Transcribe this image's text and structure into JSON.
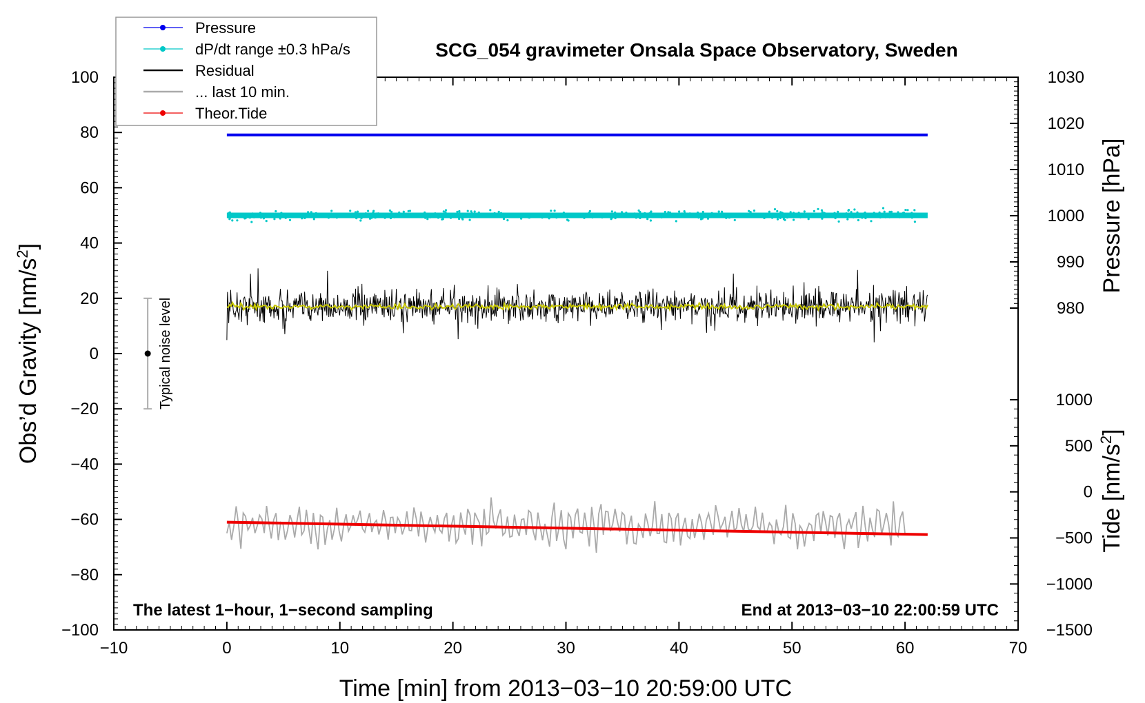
{
  "chart_data": {
    "type": "line",
    "title": "SCG_054 gravimeter Onsala Space Observatory, Sweden",
    "xlabel": "Time [min] from 2013−03−10 20:59:00 UTC",
    "ylabel": "Obs’d Gravity [nm/s²]",
    "ylabel_main": "Obs’d Gravity [nm/s",
    "ylabel_sup": "2",
    "ylabel_close": "]",
    "y2label": "Pressure [hPa]",
    "y3label": "Tide [nm/s²]",
    "y3label_main": "Tide [nm/s",
    "y3label_sup": "2",
    "y3label_close": "]",
    "xlim": [
      -10,
      70
    ],
    "ylim": [
      -100,
      100
    ],
    "pressure_lim": [
      970,
      1030
    ],
    "tide_lim": [
      -1500,
      1000
    ],
    "x_ticks": [
      -10,
      0,
      10,
      20,
      30,
      40,
      50,
      60,
      70
    ],
    "x_tick_labels": [
      "−10",
      "0",
      "10",
      "20",
      "30",
      "40",
      "50",
      "60",
      "70"
    ],
    "y_ticks": [
      100,
      80,
      60,
      40,
      20,
      0,
      -20,
      -40,
      -60,
      -80,
      -100
    ],
    "y_tick_labels": [
      "100",
      "80",
      "60",
      "40",
      "20",
      "0",
      "−20",
      "−40",
      "−60",
      "−80",
      "−100"
    ],
    "pressure_ticks": [
      1030,
      1020,
      1010,
      1000,
      990,
      980
    ],
    "pressure_tick_labels": [
      "1030",
      "1020",
      "1010",
      "1000",
      "990",
      "980"
    ],
    "tide_ticks": [
      1000,
      500,
      0,
      -500,
      -1000,
      -1500
    ],
    "tide_tick_labels": [
      "1000",
      "500",
      "0",
      "−500",
      "−1000",
      "−1500"
    ],
    "legend": [
      {
        "name": "Pressure",
        "color": "#0000ee",
        "marker": "dot"
      },
      {
        "name": "dP/dt range ±0.3 hPa/s",
        "color": "#00c8c8",
        "marker": "dot"
      },
      {
        "name": "Residual",
        "color": "#000000",
        "marker": "line"
      },
      {
        "name": "... last 10 min.",
        "color": "#aaaaaa",
        "marker": "line"
      },
      {
        "name": "Theor.Tide",
        "color": "#ee0000",
        "marker": "dot"
      }
    ],
    "series": [
      {
        "name": "Pressure",
        "axis": "pressure",
        "x_range": [
          0,
          62
        ],
        "level_hpa": 1017.5
      },
      {
        "name": "dP/dt range ±0.3 hPa/s",
        "axis": "gravity",
        "x_range": [
          0,
          62
        ],
        "level_nms2": 50
      },
      {
        "name": "Residual",
        "axis": "gravity",
        "x_range": [
          0,
          62
        ],
        "mean_nms2": 17,
        "amplitude_nms2": 8
      },
      {
        "name": "Residual smoothed",
        "axis": "gravity",
        "x_range": [
          0,
          62
        ],
        "mean_nms2": 17
      },
      {
        "name": "... last 10 min.",
        "axis": "gravity",
        "x_range": [
          0,
          60
        ],
        "mean_nms2": -62,
        "amplitude_nms2": 7
      },
      {
        "name": "Theor.Tide",
        "axis": "gravity",
        "x": [
          0,
          62
        ],
        "y": [
          -61,
          -65.5
        ]
      }
    ],
    "noise_bar": {
      "x": -7,
      "center": 0,
      "low": -20,
      "high": 20,
      "label": "Typical noise level"
    },
    "annotations": {
      "bottom_left": "The latest 1−hour, 1−second sampling",
      "bottom_right": "End at 2013−03−10 22:00:59 UTC"
    }
  }
}
